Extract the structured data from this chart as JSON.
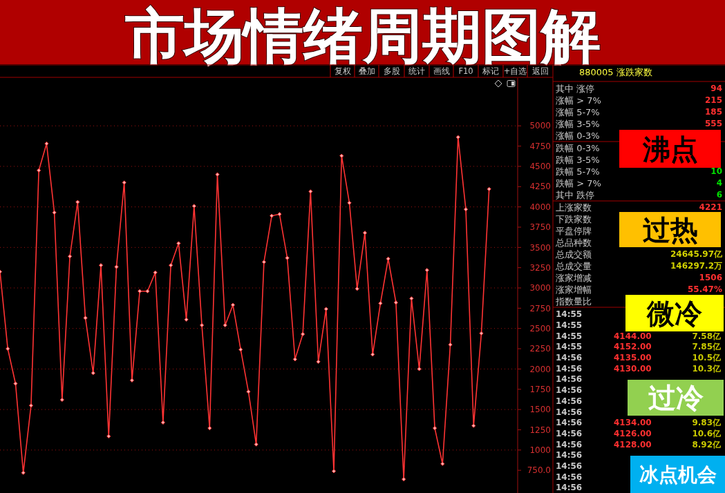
{
  "chart_data": [
    {
      "type": "line",
      "title": "市场情绪周期图解",
      "categories": [
        null,
        null,
        null,
        null,
        null,
        null,
        null,
        null,
        null,
        null,
        null,
        null,
        null,
        null,
        null,
        null,
        null,
        null,
        null,
        null,
        null,
        null,
        null,
        null,
        null,
        null,
        null,
        null,
        null,
        null,
        null,
        null,
        null,
        null,
        null,
        null,
        null,
        null,
        null,
        null,
        null,
        null,
        null,
        null,
        null,
        null,
        null,
        null,
        null,
        null,
        null,
        null,
        null,
        null,
        null,
        null,
        null,
        null,
        null,
        null,
        null,
        null,
        null,
        null
      ],
      "series": [
        {
          "color": "#ff3333",
          "values": [
            3200,
            2250,
            1820,
            720,
            1550,
            4450,
            4780,
            3930,
            1620,
            3390,
            4060,
            2630,
            1950,
            3280,
            1170,
            3260,
            4300,
            1860,
            2960,
            2960,
            3190,
            1340,
            3280,
            3550,
            2610,
            4010,
            2540,
            1270,
            4400,
            2540,
            2790,
            2240,
            1720,
            1070,
            3320,
            3890,
            3910,
            3370,
            2120,
            2430,
            4190,
            2090,
            2740,
            740,
            4630,
            4050,
            2990,
            3680,
            2180,
            2810,
            3360,
            2820,
            640,
            2870,
            2000,
            3220,
            1270,
            830,
            2300,
            4860,
            3970,
            1300,
            2440,
            4220
          ]
        }
      ],
      "ylim": [
        470,
        5590
      ],
      "yticks": [
        5000,
        4750,
        4500,
        4250,
        4000,
        3750,
        3500,
        3250,
        3000,
        2750,
        2500,
        2250,
        2000,
        1750,
        1500,
        1250,
        1000,
        {
          "value": 750,
          "label": "750.0"
        }
      ],
      "grid": "y",
      "marker": "diamond",
      "tick_labels": "y"
    },
    {
      "type": "other",
      "categories": [
        "复权",
        "叠加",
        "多股",
        "统计",
        "画线",
        "F10",
        "标记",
        "+自选",
        "返回"
      ]
    },
    {
      "type": "other",
      "title": "880005 涨跌家数",
      "categories": [
        "其中 涨停",
        "涨幅 > 7%",
        "涨幅 5-7%",
        "涨幅 3-5%",
        "涨幅 0-3%",
        "跌幅 0-3%",
        "跌幅 3-5%",
        "跌幅 5-7%",
        "跌幅 > 7%",
        "其中 跌停",
        "上涨家数",
        "下跌家数",
        "平盘停牌",
        "总品种数",
        "总成交额",
        "总成交量",
        "涨家增减",
        "涨家增幅",
        "指数量比"
      ],
      "value_labels": [
        "94",
        "215",
        "185",
        "555",
        null,
        null,
        null,
        "10",
        "4",
        "6",
        "4221",
        null,
        null,
        null,
        "24645.97亿",
        "146297.2万",
        "1506",
        "55.47%",
        null
      ],
      "colors": [
        "#ff3030",
        "#ff3030",
        "#ff3030",
        "#ff3030",
        null,
        null,
        null,
        "#00e000",
        "#00e000",
        "#00e000",
        "#ff3030",
        null,
        null,
        null,
        "#d0d000",
        "#d0d000",
        "#ff3030",
        "#ff3030",
        null
      ]
    },
    {
      "type": "other",
      "cell_labels": [
        [
          "14:55",
          null,
          null
        ],
        [
          "14:55",
          null,
          null
        ],
        [
          "14:55",
          "4144.00",
          "7.58亿"
        ],
        [
          "14:55",
          "4152.00",
          "7.85亿"
        ],
        [
          "14:56",
          "4135.00",
          "10.5亿"
        ],
        [
          "14:56",
          "4130.00",
          "10.3亿"
        ],
        [
          "14:56",
          null,
          null
        ],
        [
          "14:56",
          null,
          null
        ],
        [
          "14:56",
          null,
          null
        ],
        [
          "14:56",
          null,
          null
        ],
        [
          "14:56",
          "4134.00",
          "9.83亿"
        ],
        [
          "14:56",
          "4126.00",
          "10.6亿"
        ],
        [
          "14:56",
          "4128.00",
          "8.92亿"
        ],
        [
          "14:56",
          null,
          null
        ],
        [
          "14:56",
          null,
          null
        ],
        [
          "14:56",
          null,
          null
        ],
        [
          "14:56",
          null,
          null
        ]
      ]
    },
    {
      "type": "other",
      "categories": [
        "沸点",
        "过热",
        "微冷",
        "过冷",
        "冰点机会"
      ],
      "colors": [
        "#ff0000",
        "#ffc000",
        "#ffff00",
        "#92d050",
        "#00b0f0"
      ]
    }
  ]
}
